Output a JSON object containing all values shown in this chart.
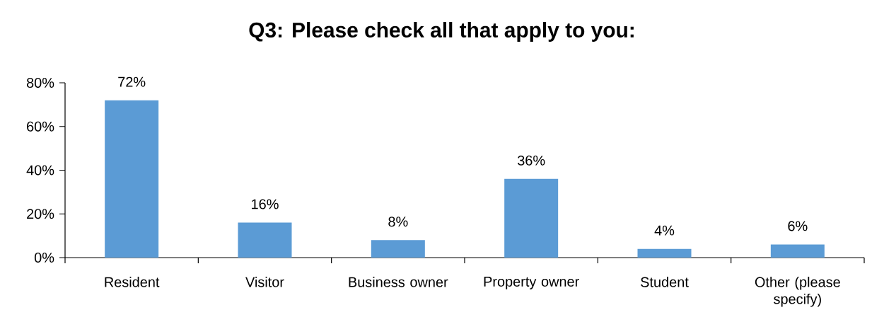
{
  "chart_data": {
    "type": "bar",
    "title": "Q3: Please check all that apply to you:",
    "categories": [
      "Resident",
      "Visitor",
      "Business owner",
      "Property owner",
      "Student",
      "Other (please specify)"
    ],
    "values": [
      72,
      16,
      8,
      36,
      4,
      6
    ],
    "value_labels": [
      "72%",
      "16%",
      "8%",
      "36%",
      "4%",
      "6%"
    ],
    "color": "#5b9bd5",
    "ylim": [
      0,
      80
    ],
    "yticks": [
      {
        "value": 0,
        "label": "0%"
      },
      {
        "value": 20,
        "label": "20%"
      },
      {
        "value": 40,
        "label": "40%"
      },
      {
        "value": 60,
        "label": "60%"
      },
      {
        "value": 80,
        "label": "80%"
      }
    ]
  }
}
